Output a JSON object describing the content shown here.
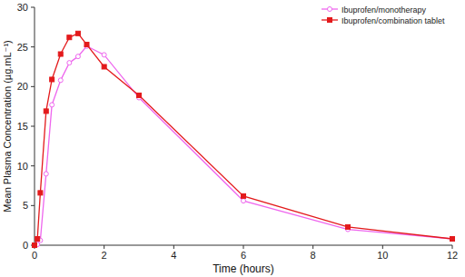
{
  "chart_data": {
    "type": "line",
    "x_label": "Time (hours)",
    "y_label": "Mean Plasma Concentration (µg.mL⁻¹)",
    "x": [
      0,
      0.083,
      0.167,
      0.333,
      0.5,
      0.75,
      1,
      1.25,
      1.5,
      2,
      3,
      6,
      9,
      12
    ],
    "series": [
      {
        "name": "Ibuprofen/monotherapy",
        "color": "#ee66ee",
        "marker": "circle",
        "values": [
          0,
          0.1,
          0.6,
          9.0,
          17.7,
          20.8,
          23.0,
          23.8,
          25.1,
          24.0,
          18.6,
          5.6,
          2.0,
          0.8
        ]
      },
      {
        "name": "Ibuprofen/combination tablet",
        "color": "#e31a1c",
        "marker": "square",
        "values": [
          0,
          0.8,
          6.6,
          16.9,
          20.9,
          24.1,
          26.2,
          26.7,
          25.3,
          22.5,
          18.9,
          6.2,
          2.3,
          0.8
        ]
      }
    ],
    "xlim": [
      0,
      12
    ],
    "xticks": [
      0,
      2,
      4,
      6,
      8,
      10,
      12
    ],
    "ylim": [
      0,
      30
    ],
    "yticks": [
      0,
      5,
      10,
      15,
      20,
      25,
      30
    ],
    "grid": false,
    "legend": "upper right"
  }
}
